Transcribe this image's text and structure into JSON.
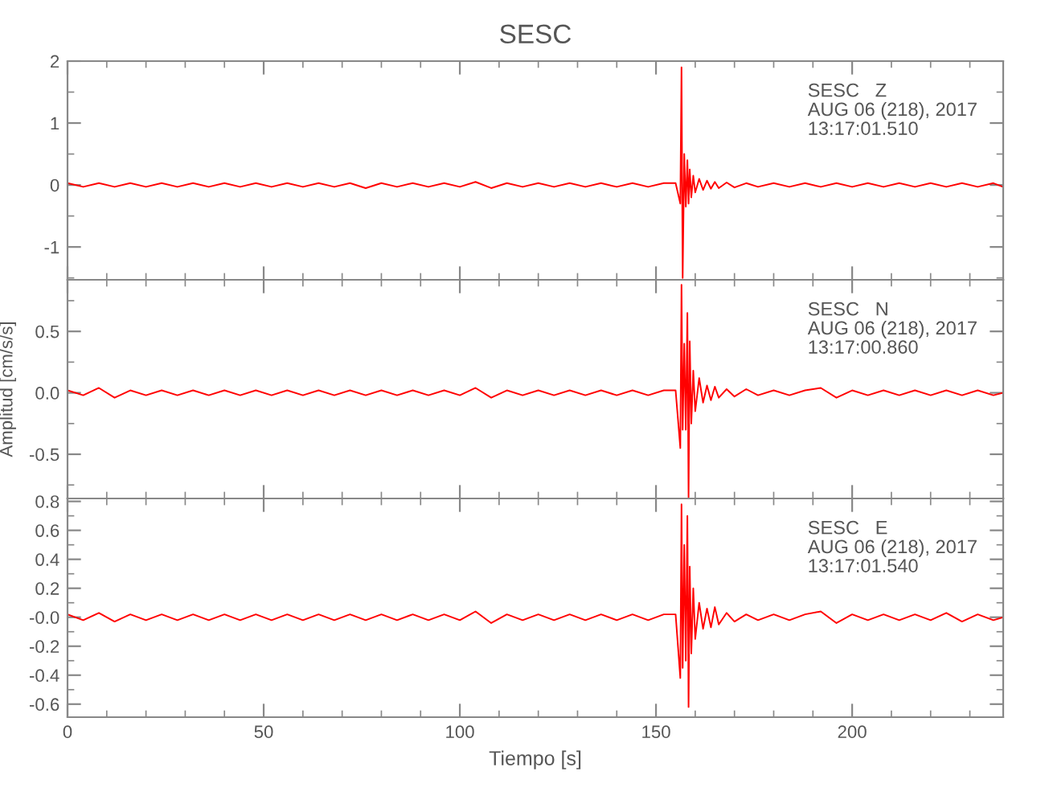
{
  "chart_data": [
    {
      "type": "line",
      "title": "SESC",
      "tick_labels": "y",
      "grid": false,
      "marker": "none",
      "line_style": "solid",
      "annotations": [
        "SESC   Z\nAUG 06 (218), 2017\n13:17:01.510"
      ],
      "xlim": [
        0,
        238.5
      ],
      "xticks": [
        0,
        50,
        100,
        150,
        200
      ],
      "ylim": [
        -1.53,
        2.0
      ],
      "yticks": [
        -1,
        0,
        1,
        2
      ],
      "x": [
        0,
        4,
        8,
        12,
        16,
        20,
        24,
        28,
        32,
        36,
        40,
        44,
        48,
        52,
        56,
        60,
        64,
        68,
        72,
        76,
        80,
        84,
        88,
        92,
        96,
        100,
        104,
        108,
        112,
        116,
        120,
        124,
        128,
        132,
        136,
        140,
        144,
        148,
        152,
        155,
        156.2,
        156.5,
        156.8,
        157.2,
        157.6,
        158,
        158.3,
        158.6,
        159,
        159.5,
        160,
        161,
        162,
        163,
        164,
        165,
        166,
        168,
        170,
        173,
        176,
        180,
        184,
        188,
        192,
        196,
        200,
        204,
        208,
        212,
        216,
        220,
        224,
        228,
        232,
        236,
        238.5
      ],
      "series": [
        {
          "color": "#ff0000",
          "values": [
            0.03,
            -0.03,
            0.03,
            -0.03,
            0.03,
            -0.03,
            0.03,
            -0.03,
            0.03,
            -0.03,
            0.03,
            -0.03,
            0.03,
            -0.03,
            0.03,
            -0.03,
            0.03,
            -0.03,
            0.03,
            -0.05,
            0.03,
            -0.03,
            0.03,
            -0.03,
            0.03,
            -0.03,
            0.05,
            -0.05,
            0.03,
            -0.03,
            0.03,
            -0.03,
            0.03,
            -0.03,
            0.03,
            -0.03,
            0.03,
            -0.03,
            0.03,
            0.03,
            -0.3,
            1.9,
            -1.5,
            0.5,
            -0.35,
            0.4,
            -0.3,
            0.25,
            -0.2,
            0.15,
            -0.12,
            0.1,
            -0.08,
            0.07,
            -0.06,
            0.05,
            -0.05,
            0.04,
            -0.04,
            0.03,
            -0.03,
            0.03,
            -0.03,
            0.03,
            -0.03,
            0.03,
            -0.03,
            0.03,
            -0.03,
            0.03,
            -0.03,
            0.03,
            -0.03,
            0.03,
            -0.03,
            0.03,
            -0.03
          ]
        }
      ]
    },
    {
      "type": "line",
      "ylabel": "Amplitud [cm/s/s]",
      "tick_labels": "y",
      "grid": false,
      "marker": "none",
      "line_style": "solid",
      "annotations": [
        "SESC   N\nAUG 06 (218), 2017\n13:17:00.860"
      ],
      "xlim": [
        0,
        238.5
      ],
      "xticks": [
        0,
        50,
        100,
        150,
        200
      ],
      "ylim": [
        -0.86,
        0.92
      ],
      "yticks": [
        {
          "value": -0.5,
          "label": "-0.5"
        },
        {
          "value": 0,
          "label": "0.0"
        },
        {
          "value": 0.5,
          "label": "0.5"
        }
      ],
      "x": [
        0,
        4,
        8,
        12,
        16,
        20,
        24,
        28,
        32,
        36,
        40,
        44,
        48,
        52,
        56,
        60,
        64,
        68,
        72,
        76,
        80,
        84,
        88,
        92,
        96,
        100,
        104,
        108,
        112,
        116,
        120,
        124,
        128,
        132,
        136,
        140,
        144,
        148,
        152,
        155,
        156.2,
        156.5,
        156.8,
        157.2,
        157.6,
        158,
        158.3,
        158.6,
        159,
        159.5,
        160,
        161,
        162,
        163,
        164,
        165,
        166,
        168,
        170,
        173,
        176,
        180,
        184,
        188,
        192,
        196,
        200,
        204,
        208,
        212,
        216,
        220,
        224,
        228,
        232,
        236,
        238.5
      ],
      "series": [
        {
          "color": "#ff0000",
          "values": [
            0.02,
            -0.02,
            0.04,
            -0.04,
            0.02,
            -0.02,
            0.02,
            -0.02,
            0.02,
            -0.02,
            0.02,
            -0.02,
            0.02,
            -0.02,
            0.02,
            -0.02,
            0.02,
            -0.02,
            0.02,
            -0.02,
            0.02,
            -0.02,
            0.02,
            -0.02,
            0.02,
            -0.02,
            0.04,
            -0.04,
            0.02,
            -0.02,
            0.02,
            -0.02,
            0.02,
            -0.02,
            0.02,
            -0.02,
            0.02,
            -0.02,
            0.02,
            0.02,
            -0.45,
            0.88,
            -0.3,
            0.4,
            -0.3,
            0.65,
            -0.85,
            0.42,
            -0.25,
            0.18,
            -0.15,
            0.12,
            -0.08,
            0.06,
            -0.06,
            0.05,
            -0.04,
            0.03,
            -0.03,
            0.03,
            -0.02,
            0.02,
            -0.02,
            0.02,
            0.04,
            -0.04,
            0.02,
            -0.02,
            0.02,
            -0.02,
            0.02,
            -0.02,
            0.02,
            -0.02,
            0.02,
            -0.02,
            0.0
          ]
        }
      ]
    },
    {
      "type": "line",
      "xlabel": "Tiempo [s]",
      "grid": false,
      "marker": "none",
      "line_style": "solid",
      "annotations": [
        "SESC   E\nAUG 06 (218), 2017\n13:17:01.540"
      ],
      "xlim": [
        0,
        238.5
      ],
      "xticks": [
        0,
        50,
        100,
        150,
        200
      ],
      "ylim": [
        -0.69,
        0.82
      ],
      "yticks": [
        {
          "value": -0.6,
          "label": "-0.6"
        },
        {
          "value": -0.4,
          "label": "-0.4"
        },
        {
          "value": -0.2,
          "label": "-0.2"
        },
        {
          "value": 0,
          "label": "-0.0"
        },
        {
          "value": 0.2,
          "label": "0.2"
        },
        {
          "value": 0.4,
          "label": "0.4"
        },
        {
          "value": 0.6,
          "label": "0.6"
        },
        {
          "value": 0.8,
          "label": "0.8"
        }
      ],
      "x": [
        0,
        4,
        8,
        12,
        16,
        20,
        24,
        28,
        32,
        36,
        40,
        44,
        48,
        52,
        56,
        60,
        64,
        68,
        72,
        76,
        80,
        84,
        88,
        92,
        96,
        100,
        104,
        108,
        112,
        116,
        120,
        124,
        128,
        132,
        136,
        140,
        144,
        148,
        152,
        155,
        156.2,
        156.5,
        156.8,
        157.2,
        157.6,
        158,
        158.3,
        158.6,
        159,
        159.5,
        160,
        161,
        162,
        163,
        164,
        165,
        166,
        168,
        170,
        173,
        176,
        180,
        184,
        188,
        192,
        196,
        200,
        204,
        208,
        212,
        216,
        220,
        224,
        228,
        232,
        236,
        238.5
      ],
      "series": [
        {
          "color": "#ff0000",
          "values": [
            0.02,
            -0.02,
            0.03,
            -0.03,
            0.02,
            -0.02,
            0.02,
            -0.02,
            0.02,
            -0.02,
            0.02,
            -0.02,
            0.02,
            -0.02,
            0.02,
            -0.02,
            0.02,
            -0.02,
            0.02,
            -0.02,
            0.02,
            -0.02,
            0.02,
            -0.02,
            0.02,
            -0.02,
            0.04,
            -0.04,
            0.02,
            -0.02,
            0.02,
            -0.02,
            0.02,
            -0.02,
            0.02,
            -0.02,
            0.02,
            -0.02,
            0.02,
            0.02,
            -0.42,
            0.78,
            -0.35,
            0.5,
            -0.3,
            0.7,
            -0.62,
            0.35,
            -0.25,
            0.2,
            -0.15,
            0.1,
            -0.08,
            0.06,
            -0.07,
            0.07,
            -0.05,
            0.03,
            -0.03,
            0.02,
            -0.02,
            0.02,
            -0.02,
            0.02,
            0.04,
            -0.04,
            0.02,
            -0.02,
            0.02,
            -0.02,
            0.02,
            -0.02,
            0.03,
            -0.03,
            0.02,
            -0.02,
            0.0
          ]
        }
      ]
    }
  ]
}
